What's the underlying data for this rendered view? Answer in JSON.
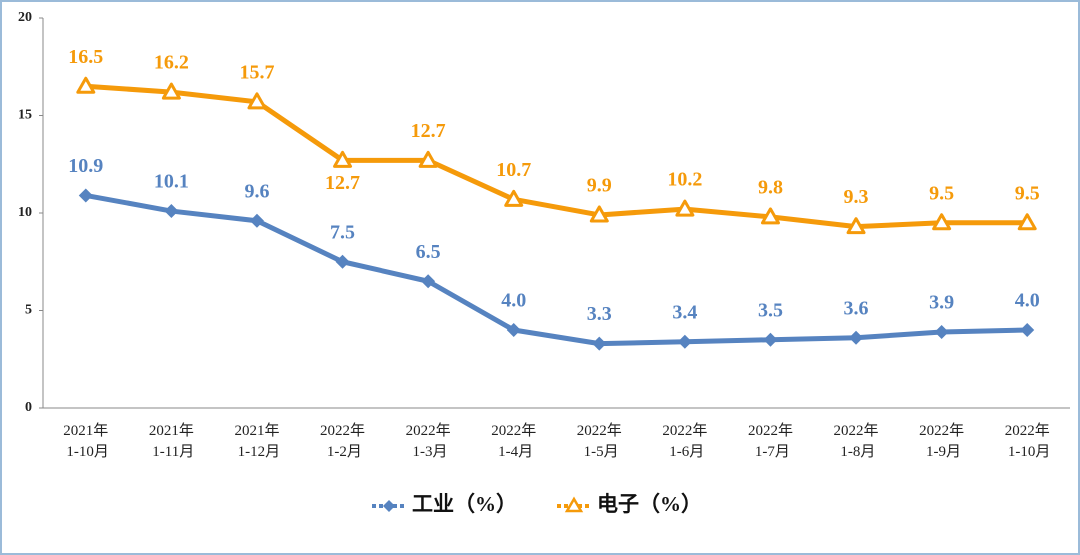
{
  "chart_data": {
    "type": "line",
    "categories": [
      "2021年\n1-10月",
      "2021年\n1-11月",
      "2021年\n1-12月",
      "2022年\n1-2月",
      "2022年\n1-3月",
      "2022年\n1-4月",
      "2022年\n1-5月",
      "2022年\n1-6月",
      "2022年\n1-7月",
      "2022年\n1-8月",
      "2022年\n1-9月",
      "2022年\n1-10月"
    ],
    "series": [
      {
        "name": "工业（%）",
        "color": "#5683c0",
        "marker": "diamond",
        "values": [
          10.9,
          10.1,
          9.6,
          7.5,
          6.5,
          4.0,
          3.3,
          3.4,
          3.5,
          3.6,
          3.9,
          4.0
        ],
        "value_labels": [
          "10.9",
          "10.1",
          "9.6",
          "7.5",
          "6.5",
          "4.0",
          "3.3",
          "3.4",
          "3.5",
          "3.6",
          "3.9",
          "4.0"
        ]
      },
      {
        "name": "电子（%）",
        "color": "#f59a0a",
        "marker": "triangle",
        "values": [
          16.5,
          16.2,
          15.7,
          12.7,
          12.7,
          10.7,
          9.9,
          10.2,
          9.8,
          9.3,
          9.5,
          9.5
        ],
        "value_labels": [
          "16.5",
          "16.2",
          "15.7",
          "12.7",
          "12.7",
          "10.7",
          "9.9",
          "10.2",
          "9.8",
          "9.3",
          "9.5",
          "9.5"
        ]
      }
    ],
    "ylim": [
      0,
      20
    ],
    "yticks": [
      0,
      5,
      10,
      15,
      20
    ],
    "grid": false,
    "legend": "bottom"
  }
}
